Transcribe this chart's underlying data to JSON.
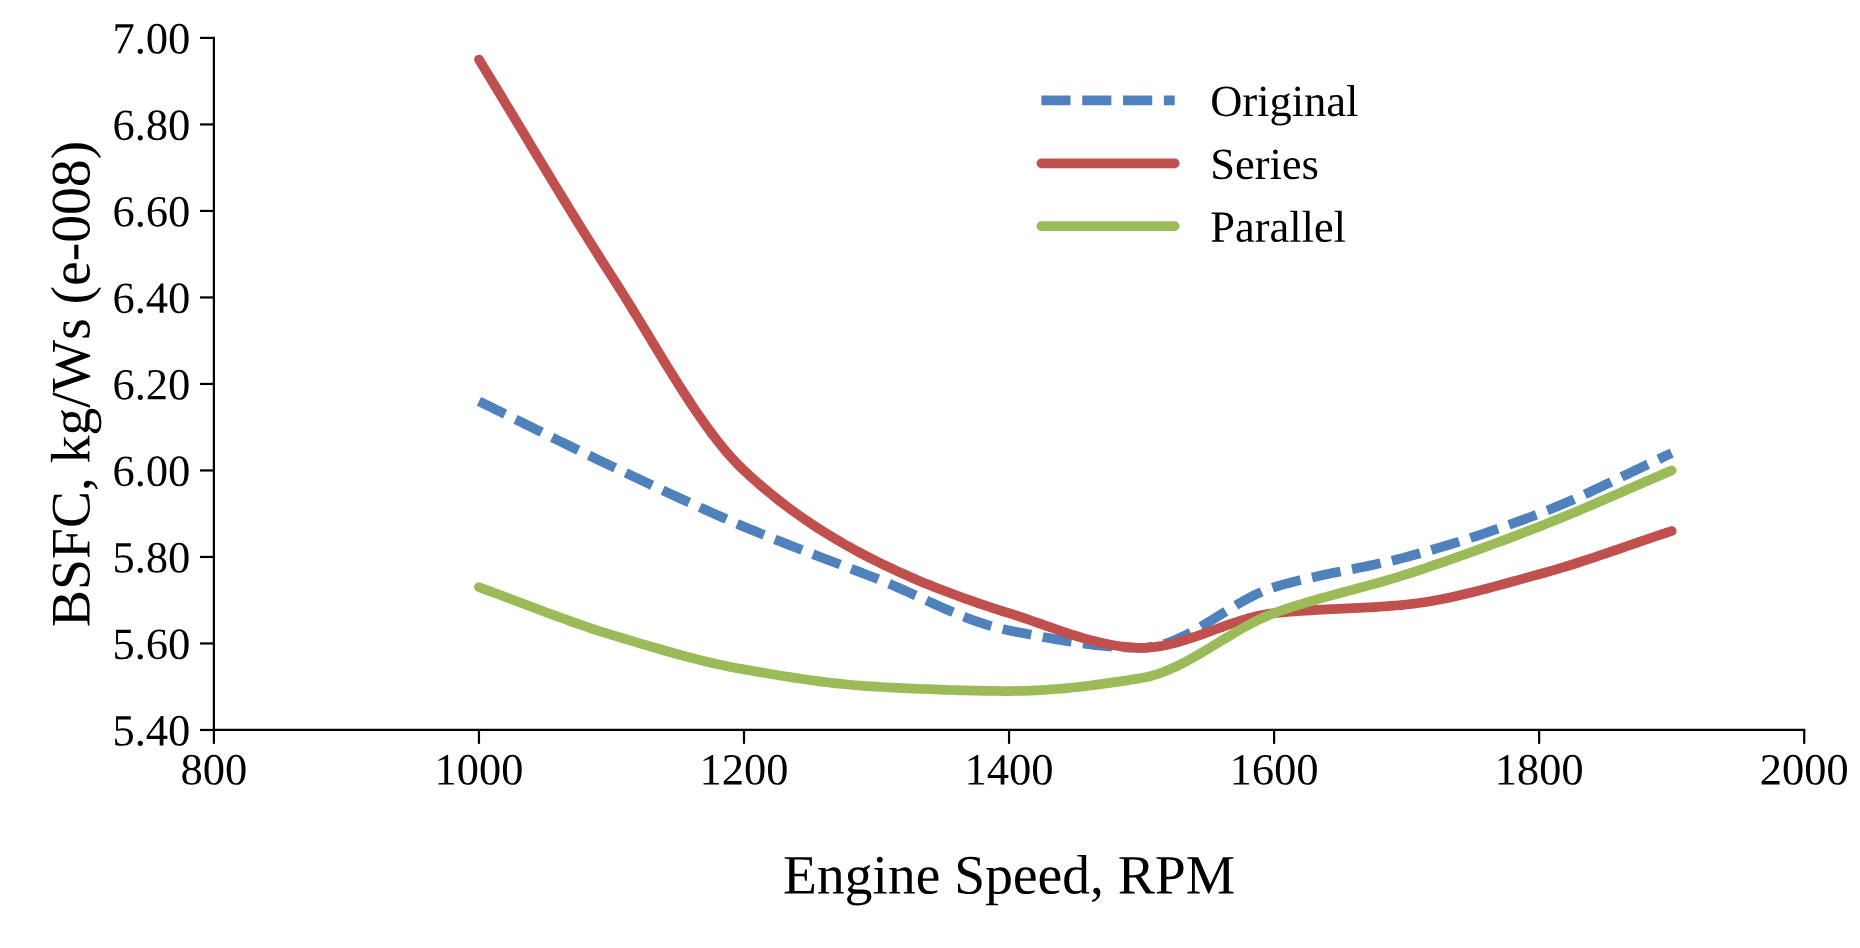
{
  "chart_data": {
    "type": "line",
    "xlabel": "Engine Speed, RPM",
    "ylabel": "BSFC, kg/Ws (e-008)",
    "x": [
      1000,
      1100,
      1200,
      1300,
      1400,
      1500,
      1600,
      1700,
      1800,
      1900
    ],
    "series": [
      {
        "name": "Original",
        "color": "#4f81bd",
        "line_style": "dashed",
        "values": [
          6.16,
          6.01,
          5.87,
          5.75,
          5.63,
          5.59,
          5.73,
          5.8,
          5.9,
          6.04
        ]
      },
      {
        "name": "Series",
        "color": "#c0504d",
        "line_style": "solid",
        "values": [
          6.95,
          6.45,
          6.0,
          5.79,
          5.67,
          5.59,
          5.67,
          5.69,
          5.76,
          5.86
        ]
      },
      {
        "name": "Parallel",
        "color": "#9bbb59",
        "line_style": "solid",
        "values": [
          5.73,
          5.62,
          5.54,
          5.5,
          5.49,
          5.52,
          5.67,
          5.76,
          5.87,
          6.0
        ]
      }
    ],
    "xlim": [
      800,
      2000
    ],
    "xticks": [
      800,
      1000,
      1200,
      1400,
      1600,
      1800,
      2000
    ],
    "ylim": [
      5.4,
      7.0
    ],
    "yticks": [
      {
        "value": 5.4,
        "label": "5.40"
      },
      {
        "value": 5.6,
        "label": "5.60"
      },
      {
        "value": 5.8,
        "label": "5.80"
      },
      {
        "value": 6.0,
        "label": "6.00"
      },
      {
        "value": 6.2,
        "label": "6.20"
      },
      {
        "value": 6.4,
        "label": "6.40"
      },
      {
        "value": 6.6,
        "label": "6.60"
      },
      {
        "value": 6.8,
        "label": "6.80"
      },
      {
        "value": 7.0,
        "label": "7.00"
      }
    ],
    "grid": false,
    "legend": "top",
    "marker": "none"
  }
}
